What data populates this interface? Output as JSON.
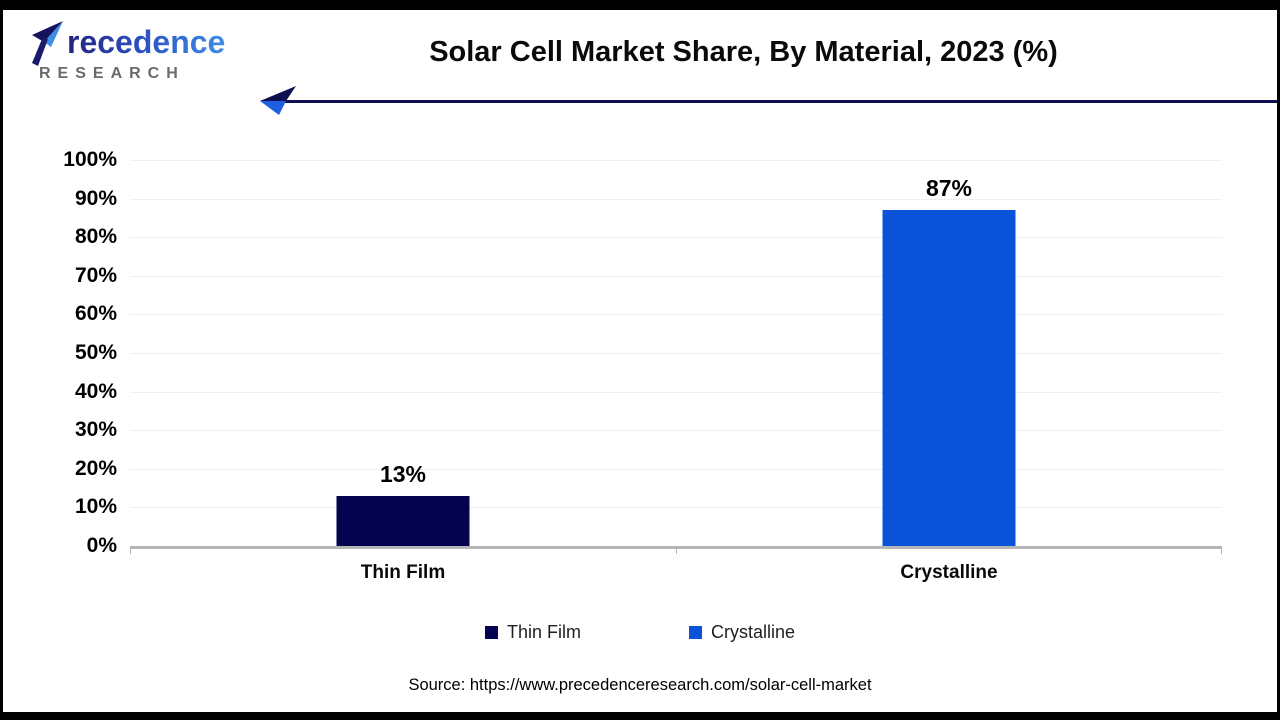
{
  "logo": {
    "brand": "Precedence",
    "subtitle": "RESEARCH"
  },
  "header": {
    "title": "Solar Cell Market Share, By Material, 2023 (%)"
  },
  "chart_data": {
    "type": "bar",
    "title": "Solar Cell Market Share, By Material, 2023 (%)",
    "categories": [
      "Thin Film",
      "Crystalline"
    ],
    "values": [
      13,
      87
    ],
    "value_labels": [
      "13%",
      "87%"
    ],
    "xlabel": "",
    "ylabel": "",
    "ylim": [
      0,
      100
    ],
    "ytick_step": 10,
    "ytick_labels_top_to_bottom": [
      "100%",
      "90%",
      "80%",
      "70%",
      "60%",
      "50%",
      "40%",
      "30%",
      "20%",
      "10%",
      "0%"
    ],
    "grid": true,
    "legend_position": "bottom",
    "legend": [
      {
        "label": "Thin Film",
        "color": "#03034f"
      },
      {
        "label": "Crystalline",
        "color": "#0a53d8"
      }
    ]
  },
  "footer": {
    "source": "Source: https://www.precedenceresearch.com/solar-cell-market"
  },
  "colors": {
    "bar_thin_film": "#03034f",
    "bar_crystalline": "#0a53d8",
    "arrow_navy": "#101050",
    "arrow_blue": "#1e5fe0",
    "axis_line": "#b5b5b5",
    "gridline": "#efefef",
    "research_gray": "#6a6a6a"
  }
}
